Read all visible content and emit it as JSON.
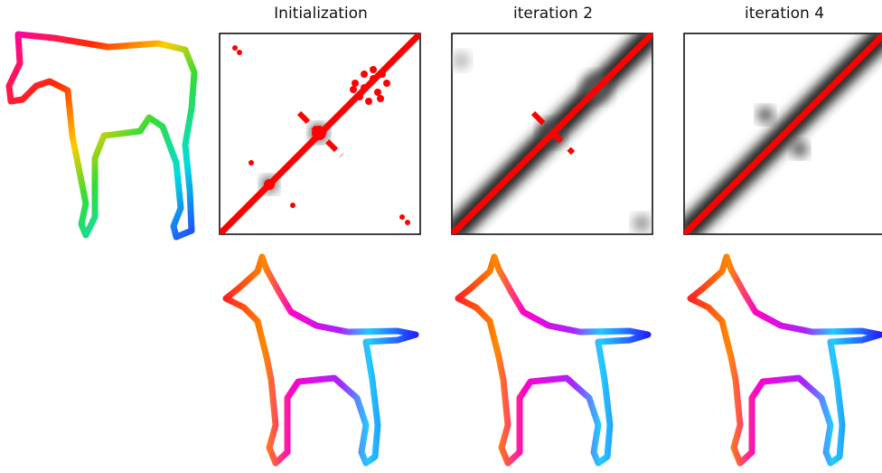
{
  "panels": {
    "titles": [
      "Initialization",
      "iteration 2",
      "iteration 4"
    ]
  }
}
